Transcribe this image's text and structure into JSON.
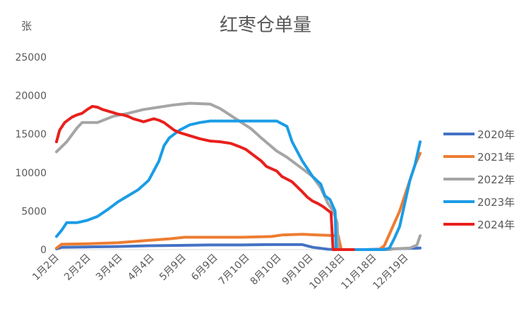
{
  "chart_data": {
    "type": "line",
    "title": "红枣仓单量",
    "ylabel": "张",
    "xlabel": "",
    "ylim": [
      0,
      25000
    ],
    "yticks": [
      0,
      5000,
      10000,
      15000,
      20000,
      25000
    ],
    "ytick_labels": [
      "0",
      "5000",
      "10000",
      "15000",
      "20000",
      "25000"
    ],
    "xlim": [
      0,
      355
    ],
    "xticks": [
      {
        "label": "1月2日",
        "x": 0
      },
      {
        "label": "2月2日",
        "x": 31
      },
      {
        "label": "3月4日",
        "x": 62
      },
      {
        "label": "4月4日",
        "x": 93
      },
      {
        "label": "5月9日",
        "x": 124
      },
      {
        "label": "6月9日",
        "x": 155
      },
      {
        "label": "7月10日",
        "x": 186
      },
      {
        "label": "8月10日",
        "x": 217
      },
      {
        "label": "9月10日",
        "x": 248
      },
      {
        "label": "10月18日",
        "x": 279
      },
      {
        "label": "11月18日",
        "x": 310
      },
      {
        "label": "12月19日",
        "x": 341
      }
    ],
    "grid": false,
    "legend": "right",
    "series": [
      {
        "name": "2020年",
        "color": "#4472c4",
        "points": [
          [
            0,
            100
          ],
          [
            5,
            300
          ],
          [
            30,
            350
          ],
          [
            60,
            400
          ],
          [
            90,
            500
          ],
          [
            150,
            600
          ],
          [
            180,
            600
          ],
          [
            210,
            650
          ],
          [
            240,
            650
          ],
          [
            250,
            300
          ],
          [
            265,
            50
          ],
          [
            275,
            0
          ],
          [
            300,
            0
          ],
          [
            330,
            100
          ],
          [
            355,
            200
          ]
        ]
      },
      {
        "name": "2021年",
        "color": "#ed7d31",
        "points": [
          [
            0,
            200
          ],
          [
            5,
            700
          ],
          [
            30,
            750
          ],
          [
            60,
            900
          ],
          [
            90,
            1200
          ],
          [
            110,
            1400
          ],
          [
            125,
            1600
          ],
          [
            150,
            1600
          ],
          [
            180,
            1600
          ],
          [
            210,
            1700
          ],
          [
            220,
            1900
          ],
          [
            240,
            2000
          ],
          [
            255,
            1900
          ],
          [
            275,
            1800
          ],
          [
            278,
            0
          ],
          [
            315,
            0
          ],
          [
            320,
            500
          ],
          [
            325,
            2000
          ],
          [
            330,
            3500
          ],
          [
            335,
            5000
          ],
          [
            340,
            7000
          ],
          [
            345,
            9000
          ],
          [
            350,
            11000
          ],
          [
            355,
            12500
          ]
        ]
      },
      {
        "name": "2022年",
        "color": "#a5a5a5",
        "points": [
          [
            0,
            12700
          ],
          [
            10,
            14000
          ],
          [
            20,
            15800
          ],
          [
            25,
            16500
          ],
          [
            40,
            16500
          ],
          [
            55,
            17300
          ],
          [
            70,
            17700
          ],
          [
            85,
            18200
          ],
          [
            100,
            18500
          ],
          [
            115,
            18800
          ],
          [
            130,
            19000
          ],
          [
            150,
            18900
          ],
          [
            160,
            18300
          ],
          [
            175,
            17000
          ],
          [
            190,
            15700
          ],
          [
            200,
            14500
          ],
          [
            215,
            12800
          ],
          [
            225,
            12000
          ],
          [
            240,
            10500
          ],
          [
            250,
            9500
          ],
          [
            258,
            8000
          ],
          [
            265,
            6000
          ],
          [
            270,
            5000
          ],
          [
            274,
            3500
          ],
          [
            275,
            0
          ],
          [
            325,
            0
          ],
          [
            330,
            100
          ],
          [
            345,
            200
          ],
          [
            352,
            600
          ],
          [
            355,
            1800
          ]
        ]
      },
      {
        "name": "2023年",
        "color": "#1b9ce6",
        "points": [
          [
            0,
            1700
          ],
          [
            5,
            2500
          ],
          [
            10,
            3500
          ],
          [
            20,
            3500
          ],
          [
            30,
            3800
          ],
          [
            40,
            4300
          ],
          [
            50,
            5200
          ],
          [
            60,
            6200
          ],
          [
            70,
            7000
          ],
          [
            80,
            7800
          ],
          [
            90,
            9000
          ],
          [
            100,
            11500
          ],
          [
            105,
            13500
          ],
          [
            110,
            14500
          ],
          [
            120,
            15500
          ],
          [
            130,
            16200
          ],
          [
            140,
            16500
          ],
          [
            150,
            16700
          ],
          [
            160,
            16700
          ],
          [
            180,
            16700
          ],
          [
            200,
            16700
          ],
          [
            215,
            16700
          ],
          [
            225,
            16000
          ],
          [
            230,
            14000
          ],
          [
            240,
            11500
          ],
          [
            250,
            9500
          ],
          [
            258,
            8500
          ],
          [
            262,
            7000
          ],
          [
            267,
            6500
          ],
          [
            272,
            5000
          ],
          [
            273,
            0
          ],
          [
            310,
            0
          ],
          [
            320,
            0
          ],
          [
            325,
            200
          ],
          [
            330,
            1500
          ],
          [
            335,
            3000
          ],
          [
            340,
            6000
          ],
          [
            345,
            9000
          ],
          [
            350,
            11000
          ],
          [
            355,
            14000
          ]
        ]
      },
      {
        "name": "2024年",
        "color": "#e8201c",
        "points": [
          [
            0,
            14000
          ],
          [
            3,
            15500
          ],
          [
            8,
            16500
          ],
          [
            15,
            17200
          ],
          [
            20,
            17500
          ],
          [
            25,
            17700
          ],
          [
            30,
            18200
          ],
          [
            35,
            18600
          ],
          [
            40,
            18500
          ],
          [
            45,
            18200
          ],
          [
            50,
            18000
          ],
          [
            55,
            17800
          ],
          [
            60,
            17600
          ],
          [
            65,
            17500
          ],
          [
            70,
            17300
          ],
          [
            75,
            17000
          ],
          [
            80,
            16800
          ],
          [
            85,
            16600
          ],
          [
            90,
            16800
          ],
          [
            95,
            17000
          ],
          [
            100,
            16800
          ],
          [
            105,
            16500
          ],
          [
            110,
            16000
          ],
          [
            115,
            15500
          ],
          [
            120,
            15200
          ],
          [
            130,
            14800
          ],
          [
            140,
            14400
          ],
          [
            150,
            14100
          ],
          [
            160,
            14000
          ],
          [
            170,
            13800
          ],
          [
            180,
            13300
          ],
          [
            185,
            13000
          ],
          [
            190,
            12500
          ],
          [
            195,
            12000
          ],
          [
            200,
            11500
          ],
          [
            205,
            10800
          ],
          [
            210,
            10500
          ],
          [
            215,
            10200
          ],
          [
            220,
            9500
          ],
          [
            230,
            8800
          ],
          [
            240,
            7500
          ],
          [
            245,
            6800
          ],
          [
            250,
            6300
          ],
          [
            255,
            6000
          ],
          [
            260,
            5600
          ],
          [
            265,
            5100
          ],
          [
            268,
            4800
          ],
          [
            270,
            0
          ],
          [
            290,
            0
          ]
        ]
      }
    ]
  }
}
